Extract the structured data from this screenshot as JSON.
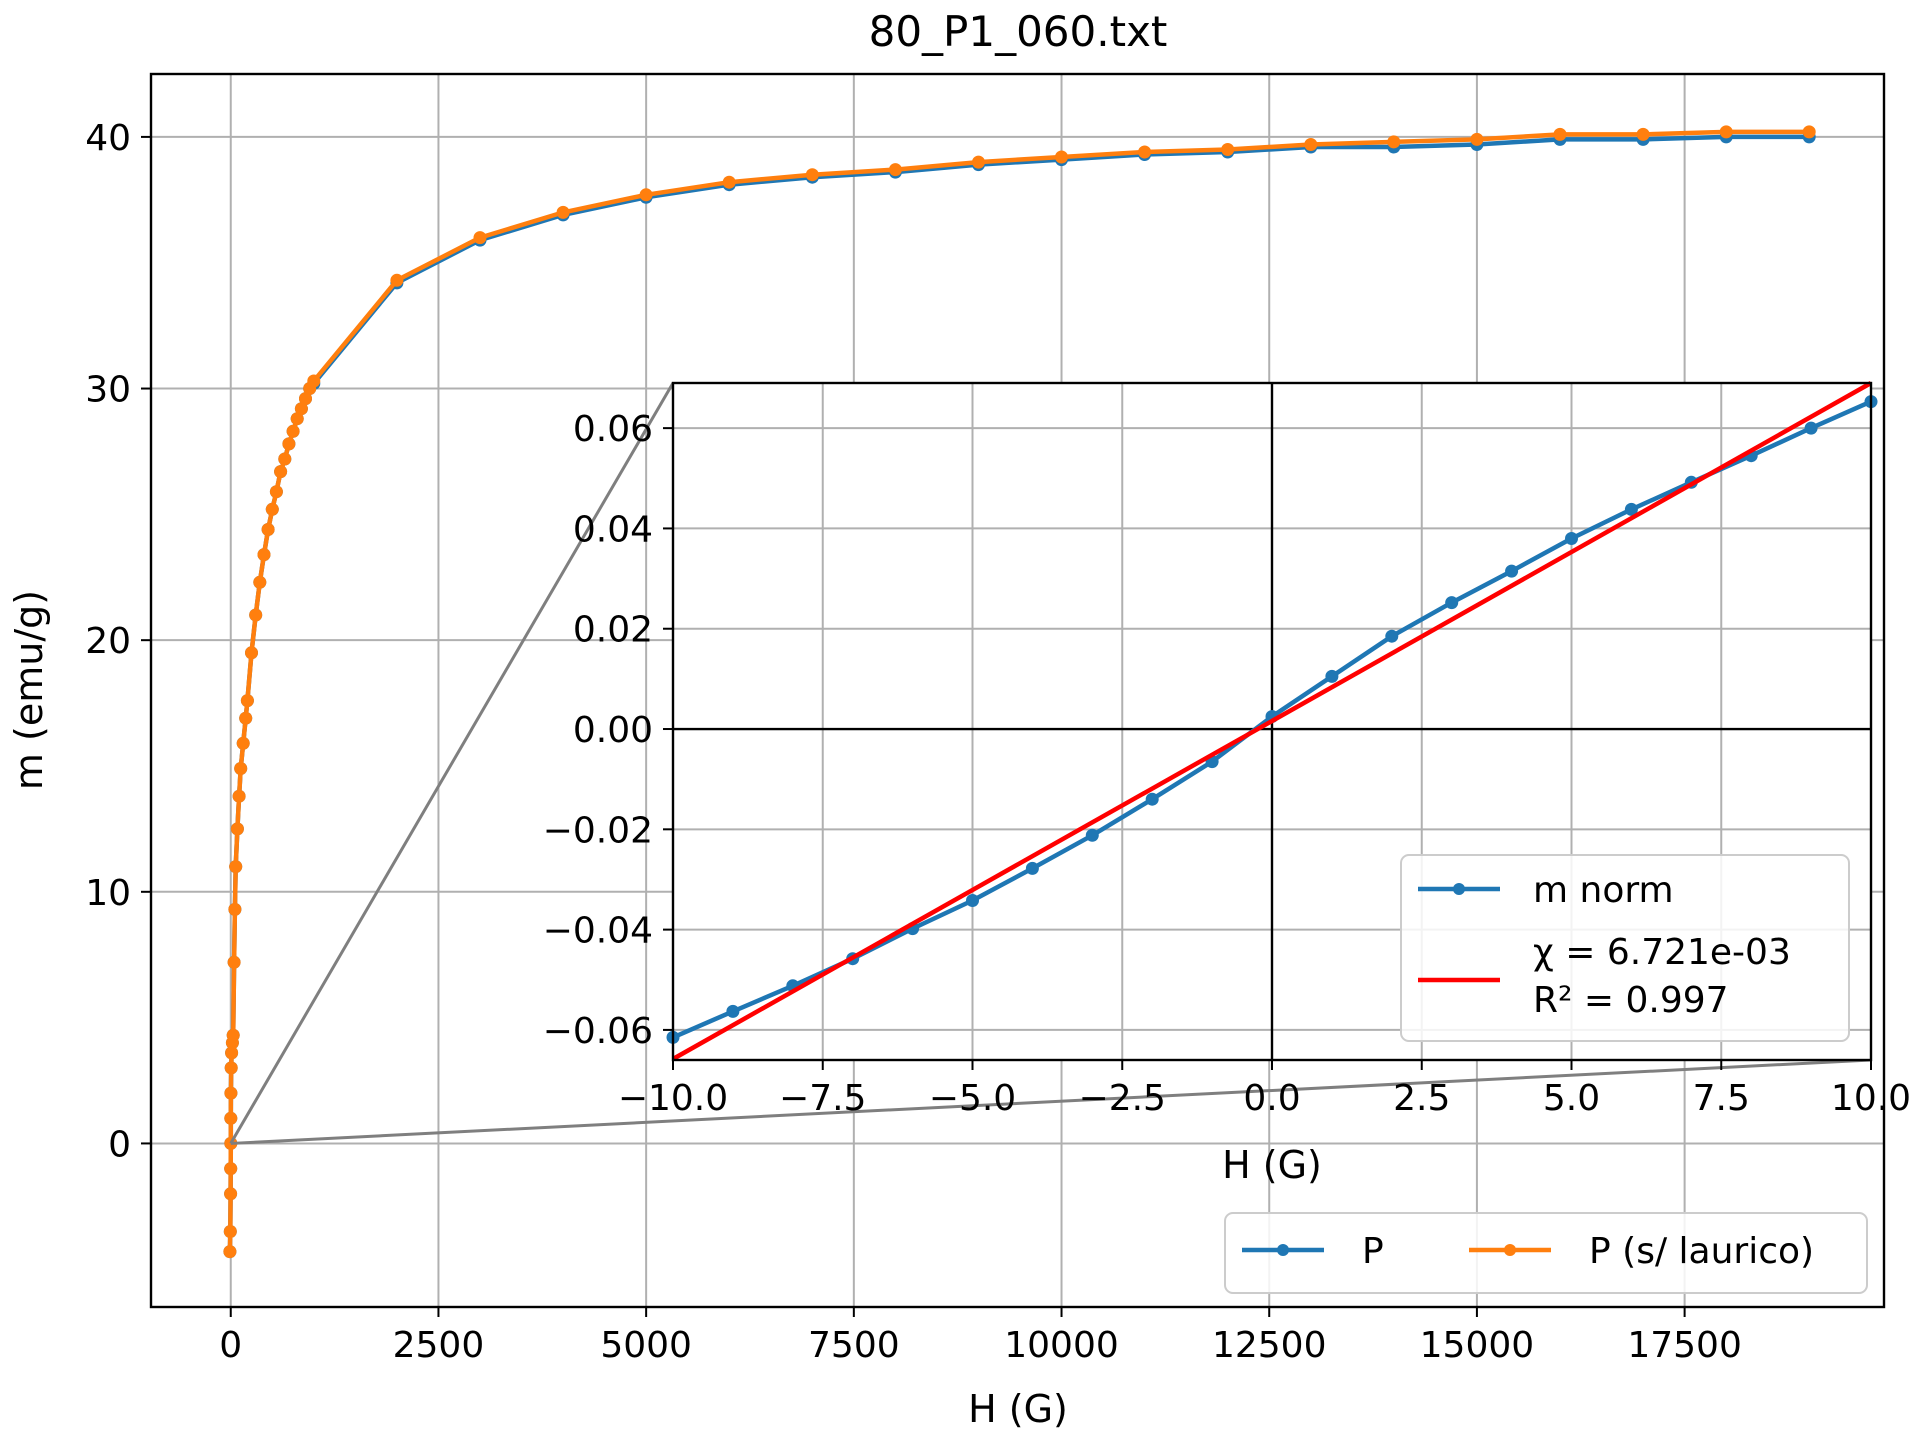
{
  "chart_data": [
    {
      "type": "line",
      "title": "80_P1_060.txt",
      "xlabel": "H (G)",
      "ylabel": "m (emu/g)",
      "xlim": [
        -960,
        19900
      ],
      "ylim": [
        -6.5,
        42.5
      ],
      "xticks": [
        0,
        2500,
        5000,
        7500,
        10000,
        12500,
        15000,
        17500
      ],
      "xtick_labels": [
        "0",
        "2500",
        "5000",
        "7500",
        "10000",
        "12500",
        "15000",
        "17500"
      ],
      "yticks": [
        0,
        10,
        20,
        30,
        40
      ],
      "ytick_labels": [
        "0",
        "10",
        "20",
        "30",
        "40"
      ],
      "grid": true,
      "legend": {
        "placement": "lower-right",
        "columns": 2
      },
      "colors": {
        "P": "#1f77b4",
        "P (s/ laurico)": "#ff7f0e"
      },
      "series": [
        {
          "name": "P",
          "x": [
            -10,
            -5,
            -2,
            -1,
            0,
            1,
            2,
            5,
            10,
            20,
            30,
            40,
            50,
            60,
            80,
            100,
            120,
            150,
            180,
            200,
            250,
            300,
            350,
            400,
            450,
            500,
            550,
            600,
            650,
            700,
            750,
            800,
            850,
            900,
            950,
            1000,
            2000,
            3000,
            4000,
            5000,
            6000,
            7000,
            8000,
            9000,
            10000,
            11000,
            12000,
            13000,
            14000,
            15000,
            16000,
            17000,
            18000,
            19000
          ],
          "y": [
            -4.3,
            -3.5,
            -2.0,
            -1.0,
            0.0,
            1.0,
            2.0,
            3.0,
            3.6,
            4.0,
            4.3,
            7.2,
            9.3,
            11.0,
            12.5,
            13.8,
            14.9,
            15.9,
            16.9,
            17.6,
            19.5,
            21.0,
            22.3,
            23.4,
            24.4,
            25.2,
            25.9,
            26.7,
            27.2,
            27.8,
            28.3,
            28.8,
            29.2,
            29.6,
            30.0,
            30.2,
            34.2,
            35.9,
            36.9,
            37.6,
            38.1,
            38.4,
            38.6,
            38.9,
            39.1,
            39.3,
            39.4,
            39.6,
            39.6,
            39.7,
            39.9,
            39.9,
            40.0,
            40.0
          ]
        },
        {
          "name": "P (s/ laurico)",
          "x": [
            -10,
            -5,
            -2,
            -1,
            0,
            1,
            2,
            5,
            10,
            20,
            30,
            40,
            50,
            60,
            80,
            100,
            120,
            150,
            180,
            200,
            250,
            300,
            350,
            400,
            450,
            500,
            550,
            600,
            650,
            700,
            750,
            800,
            850,
            900,
            950,
            1000,
            2000,
            3000,
            4000,
            5000,
            6000,
            7000,
            8000,
            9000,
            10000,
            11000,
            12000,
            13000,
            14000,
            15000,
            16000,
            17000,
            18000,
            19000
          ],
          "y": [
            -4.3,
            -3.5,
            -2.0,
            -1.0,
            0.0,
            1.0,
            2.0,
            3.0,
            3.6,
            4.0,
            4.3,
            7.2,
            9.3,
            11.0,
            12.5,
            13.8,
            14.9,
            15.9,
            16.9,
            17.6,
            19.5,
            21.0,
            22.3,
            23.4,
            24.4,
            25.2,
            25.9,
            26.7,
            27.2,
            27.8,
            28.3,
            28.8,
            29.2,
            29.6,
            30.0,
            30.3,
            34.3,
            36.0,
            37.0,
            37.7,
            38.2,
            38.5,
            38.7,
            39.0,
            39.2,
            39.4,
            39.5,
            39.7,
            39.8,
            39.9,
            40.1,
            40.1,
            40.2,
            40.2
          ]
        }
      ]
    },
    {
      "type": "line",
      "title": "",
      "xlabel": "H (G)",
      "ylabel": "",
      "xlim": [
        -10,
        10
      ],
      "ylim": [
        -0.066,
        0.069
      ],
      "xticks": [
        -10,
        -7.5,
        -5,
        -2.5,
        0,
        2.5,
        5,
        7.5,
        10
      ],
      "xtick_labels": [
        "−10.0",
        "−7.5",
        "−5.0",
        "−2.5",
        "0.0",
        "2.5",
        "5.0",
        "7.5",
        "10.0"
      ],
      "yticks": [
        -0.06,
        -0.04,
        -0.02,
        0,
        0.02,
        0.04,
        0.06
      ],
      "ytick_labels": [
        "−0.06",
        "−0.04",
        "−0.02",
        "0.00",
        "0.02",
        "0.04",
        "0.06"
      ],
      "grid": true,
      "legend": {
        "placement": "lower-right"
      },
      "colors": {
        "m norm": "#1f77b4",
        "fit": "#ff0000"
      },
      "series": [
        {
          "name": "m norm",
          "x": [
            -10,
            -9,
            -8,
            -7,
            -6,
            -5,
            -4,
            -3,
            -2,
            -1,
            0,
            1,
            2,
            3,
            4,
            5,
            6,
            7,
            8,
            9,
            10
          ],
          "y": [
            -0.0615,
            -0.0563,
            -0.0512,
            -0.0458,
            -0.0398,
            -0.0342,
            -0.0278,
            -0.0212,
            -0.014,
            -0.0065,
            0.0025,
            0.0105,
            0.0185,
            0.0252,
            0.0315,
            0.038,
            0.0438,
            0.0492,
            0.0545,
            0.06,
            0.0653
          ]
        },
        {
          "name": "χ = 6.721e-03\nR² = 0.997",
          "x": [
            -10,
            10
          ],
          "y": [
            -0.0658,
            0.069
          ]
        }
      ]
    }
  ],
  "legend_main": {
    "items": [
      "P",
      "P (s/ laurico)"
    ]
  },
  "legend_inset": {
    "item1": "m norm",
    "item2_line1": "χ = 6.721e-03",
    "item2_line2": "R² = 0.997"
  }
}
